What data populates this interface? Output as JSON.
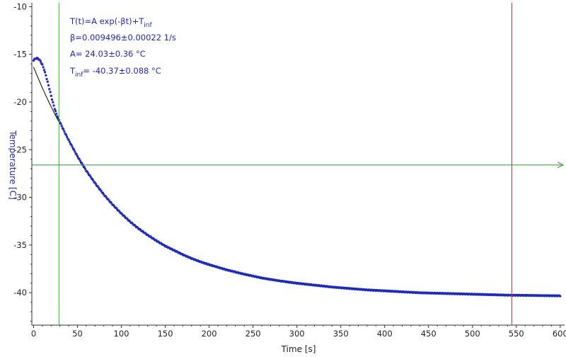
{
  "chart_data": {
    "type": "scatter",
    "xlabel": "Time [s]",
    "ylabel": "Temperature [C]",
    "xlim": [
      -2,
      605
    ],
    "ylim": [
      -43.4,
      -9.6
    ],
    "xticks": [
      "0",
      "50",
      "100",
      "150",
      "200",
      "250",
      "300",
      "350",
      "400",
      "450",
      "500",
      "550",
      "600"
    ],
    "yticks": [
      "-10",
      "-15",
      "-20",
      "-25",
      "-30",
      "-35",
      "-40"
    ],
    "grid": false,
    "colors": {
      "data": "#1f2ab8",
      "fit": "#000000",
      "green_cursor": "#2bd42b",
      "red_cursor": "#c0303a",
      "horizontal_arrow": "#2f8f2f",
      "ylabel": "#1f2ab8",
      "annotation": "#1f2ab8"
    },
    "model": {
      "A": 24.03,
      "beta": 0.009496,
      "Tinf": -40.37
    },
    "series": [
      {
        "kind": "measured",
        "points": [
          [
            0,
            -15.6
          ],
          [
            2,
            -15.45
          ],
          [
            4,
            -15.4
          ],
          [
            6,
            -15.5
          ],
          [
            8,
            -15.75
          ],
          [
            10,
            -16.1
          ],
          [
            12,
            -16.6
          ],
          [
            14,
            -17.2
          ],
          [
            16,
            -17.9
          ],
          [
            18,
            -18.6
          ],
          [
            20,
            -19.35
          ],
          [
            22,
            -20.05
          ],
          [
            24,
            -20.7
          ],
          [
            26,
            -21.25
          ],
          [
            28,
            -21.7
          ],
          [
            30,
            -22.1
          ],
          [
            35,
            -23.1
          ],
          [
            40,
            -24.0
          ],
          [
            45,
            -24.85
          ],
          [
            50,
            -25.7
          ],
          [
            55,
            -26.45
          ],
          [
            60,
            -27.2
          ],
          [
            70,
            -28.5
          ],
          [
            80,
            -29.7
          ],
          [
            90,
            -30.75
          ],
          [
            100,
            -31.7
          ],
          [
            110,
            -32.55
          ],
          [
            120,
            -33.3
          ],
          [
            130,
            -33.95
          ],
          [
            140,
            -34.55
          ],
          [
            150,
            -35.1
          ],
          [
            160,
            -35.55
          ],
          [
            170,
            -36.0
          ],
          [
            180,
            -36.4
          ],
          [
            190,
            -36.75
          ],
          [
            200,
            -37.05
          ],
          [
            220,
            -37.6
          ],
          [
            240,
            -38.05
          ],
          [
            260,
            -38.45
          ],
          [
            280,
            -38.75
          ],
          [
            300,
            -39.0
          ],
          [
            320,
            -39.2
          ],
          [
            340,
            -39.4
          ],
          [
            360,
            -39.55
          ],
          [
            380,
            -39.7
          ],
          [
            400,
            -39.8
          ],
          [
            420,
            -39.9
          ],
          [
            440,
            -40.0
          ],
          [
            460,
            -40.05
          ],
          [
            480,
            -40.1
          ],
          [
            500,
            -40.15
          ],
          [
            520,
            -40.2
          ],
          [
            540,
            -40.25
          ],
          [
            560,
            -40.27
          ],
          [
            580,
            -40.3
          ],
          [
            600,
            -40.32
          ]
        ]
      }
    ],
    "cursors": {
      "green_x": 29,
      "red_x": 545,
      "arrow_y": -26.6
    },
    "annotation": {
      "line1_main": "T(t)=A exp(-βt)+T",
      "line1_sub": "inf",
      "line2": "β=0.009496±0.00022 1/s",
      "line3": "A= 24.03±0.36 °C",
      "line4_main": "T",
      "line4_sub": "inf",
      "line4_rest": "= -40.37±0.088 °C"
    }
  }
}
